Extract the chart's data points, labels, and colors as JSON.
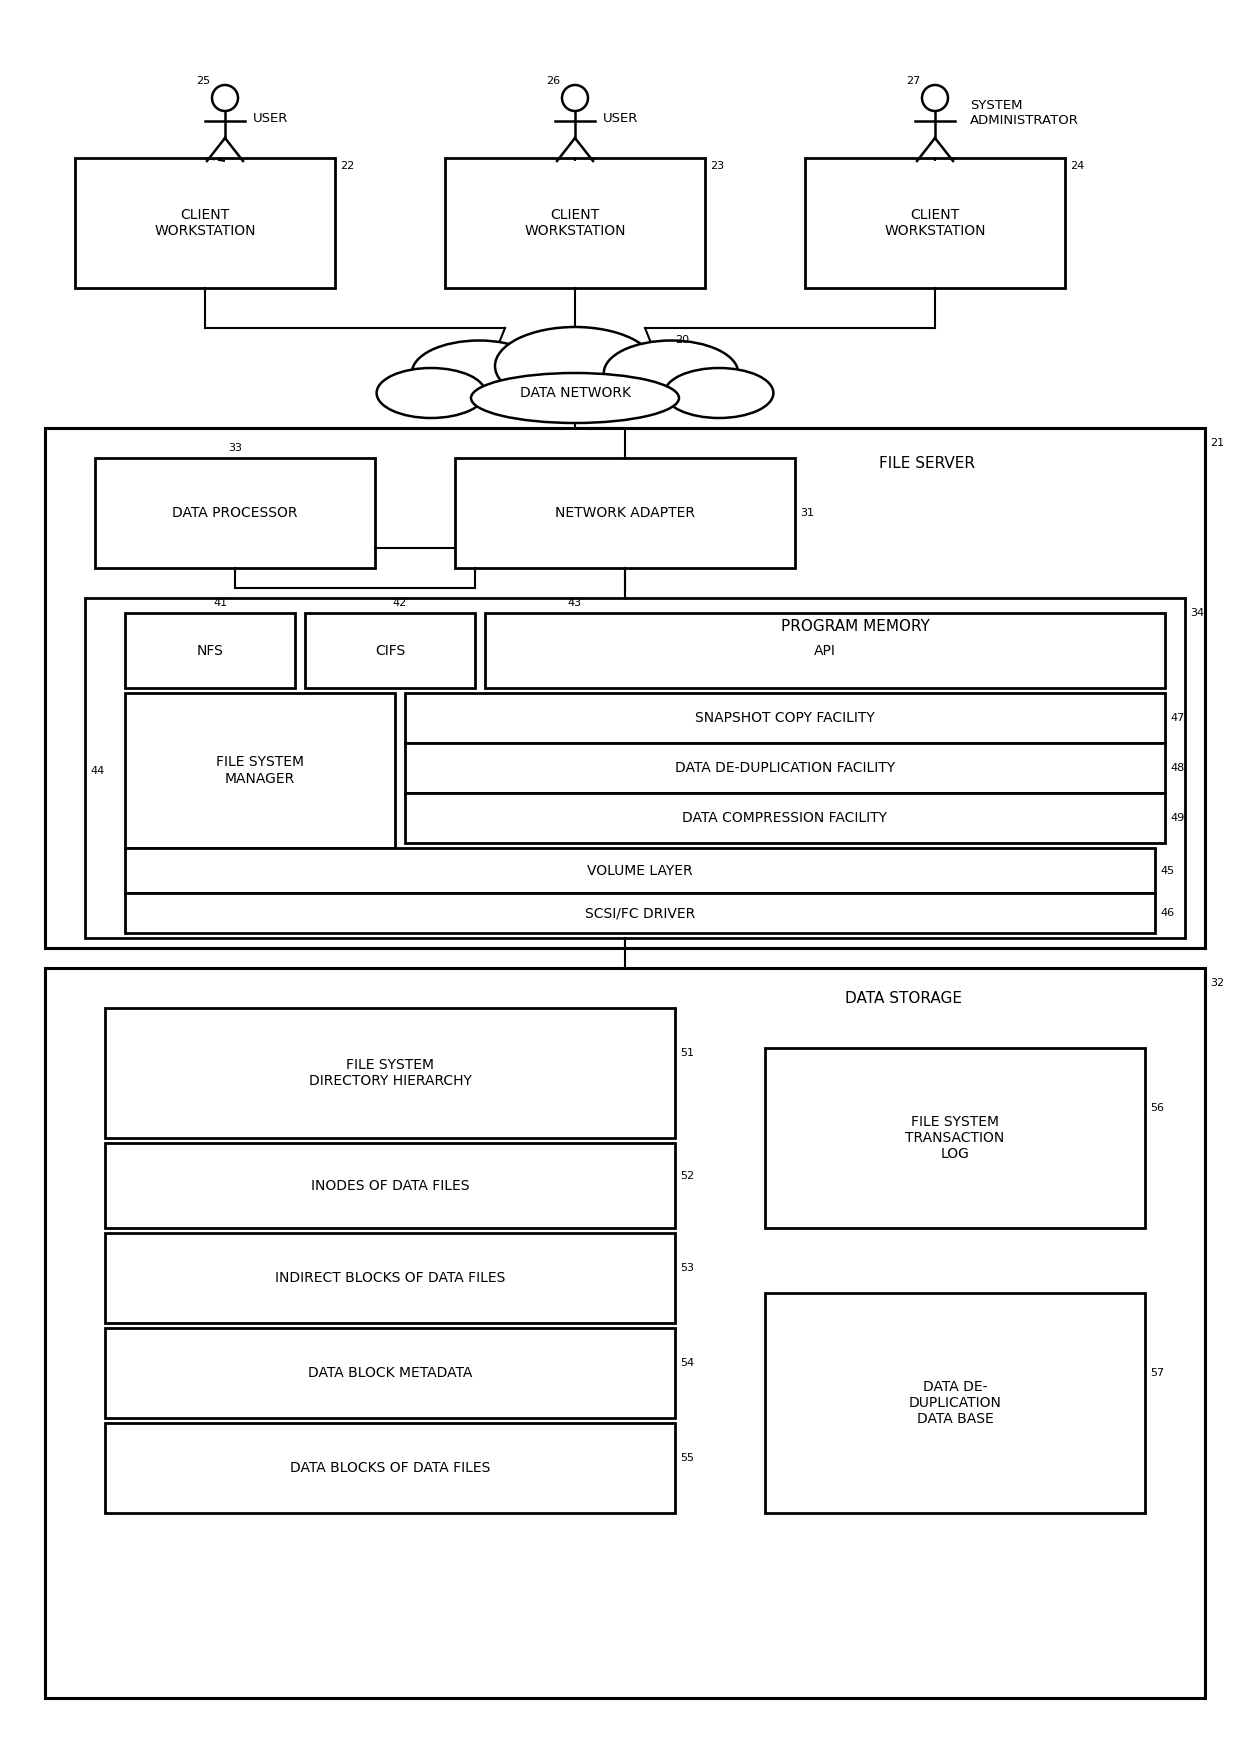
{
  "fig_width": 12.4,
  "fig_height": 17.53,
  "dpi": 100,
  "bg_color": "#ffffff"
}
